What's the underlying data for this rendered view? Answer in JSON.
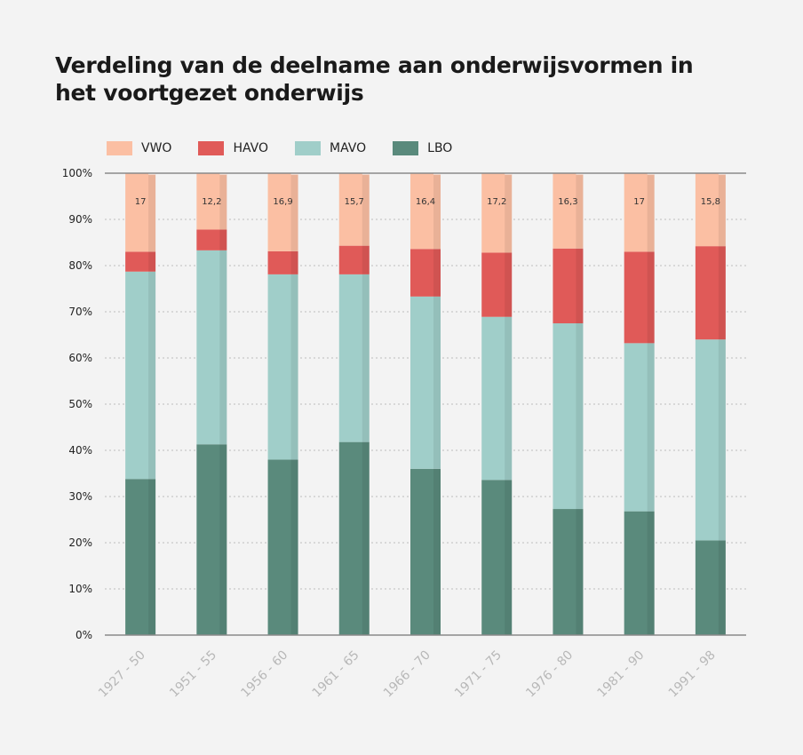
{
  "title": "Verdeling van de deelname aan onderwijsvormen in het voortgezet onderwijs",
  "legend": [
    {
      "name": "VWO",
      "color": "#fbbfa3"
    },
    {
      "name": "HAVO",
      "color": "#e05a58"
    },
    {
      "name": "MAVO",
      "color": "#a0cec9"
    },
    {
      "name": "LBO",
      "color": "#5a8a7c"
    }
  ],
  "chart_data": {
    "type": "bar",
    "stacked": true,
    "title": "Verdeling van de deelname aan onderwijsvormen in het voortgezet onderwijs",
    "xlabel": "",
    "ylabel": "",
    "ylim": [
      0,
      100
    ],
    "yticks": [
      "0%",
      "10%",
      "20%",
      "30%",
      "40%",
      "50%",
      "60%",
      "70%",
      "80%",
      "90%",
      "100%"
    ],
    "grid": true,
    "legend_position": "top-left",
    "categories": [
      "1927 - 50",
      "1951 - 55",
      "1956 - 60",
      "1961 - 65",
      "1966 - 70",
      "1971 - 75",
      "1976 - 80",
      "1981 - 90",
      "1991 - 98"
    ],
    "series": [
      {
        "name": "LBO",
        "color": "#5a8a7c",
        "values": [
          33.8,
          41.3,
          38.0,
          41.8,
          36.0,
          33.6,
          27.3,
          26.8,
          20.5
        ]
      },
      {
        "name": "MAVO",
        "color": "#a0cec9",
        "values": [
          44.9,
          42.0,
          40.1,
          36.3,
          37.3,
          35.3,
          40.2,
          36.4,
          43.5
        ]
      },
      {
        "name": "HAVO",
        "color": "#e05a58",
        "values": [
          4.3,
          4.5,
          5.0,
          6.2,
          10.3,
          13.9,
          16.2,
          19.8,
          20.2
        ]
      },
      {
        "name": "VWO",
        "color": "#fbbfa3",
        "values": [
          17,
          12.2,
          16.9,
          15.7,
          16.4,
          17.2,
          16.3,
          17,
          15.8
        ]
      }
    ],
    "value_labels": {
      "series": "VWO",
      "labels": [
        "17",
        "12,2",
        "16,9",
        "15,7",
        "16,4",
        "17,2",
        "16,3",
        "17",
        "15,8"
      ]
    }
  }
}
